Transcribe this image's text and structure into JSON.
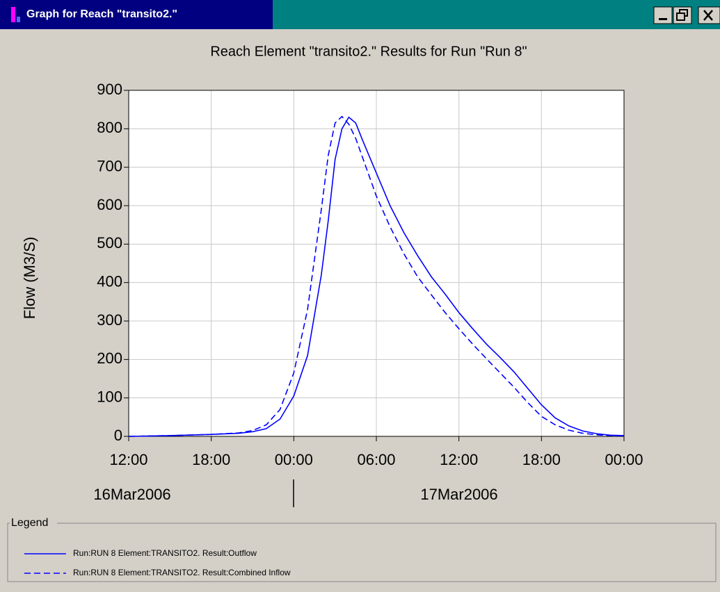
{
  "window": {
    "title": "Graph for Reach \"transito2.\""
  },
  "chart_data": {
    "type": "line",
    "title": "Reach Element \"transito2.\" Results for Run \"Run 8\"",
    "y_label": "Flow (M3/S)",
    "x": [
      0,
      3,
      6,
      8,
      9,
      10,
      11,
      12,
      13,
      14,
      14.5,
      15,
      15.5,
      16,
      16.5,
      17,
      18,
      19,
      20,
      21,
      22,
      23,
      24,
      25,
      26,
      27,
      28,
      29,
      30,
      31,
      32,
      33,
      34,
      35,
      36
    ],
    "series": [
      {
        "name": "Run:RUN 8 Element:TRANSITO2. Result:Outflow",
        "color": "#0000ff",
        "style": "solid",
        "values": [
          0,
          2,
          5,
          8,
          12,
          20,
          45,
          105,
          210,
          420,
          560,
          720,
          800,
          830,
          815,
          770,
          685,
          600,
          530,
          470,
          415,
          370,
          322,
          280,
          240,
          205,
          168,
          125,
          82,
          48,
          27,
          14,
          7,
          3,
          2
        ]
      },
      {
        "name": "Run:RUN 8 Element:TRANSITO2. Result:Combined Inflow",
        "color": "#0000ff",
        "style": "dashed",
        "values": [
          0,
          2,
          5,
          9,
          15,
          30,
          70,
          165,
          330,
          590,
          730,
          815,
          832,
          812,
          775,
          725,
          625,
          545,
          475,
          415,
          368,
          322,
          280,
          240,
          202,
          165,
          128,
          88,
          52,
          30,
          16,
          8,
          4,
          2,
          1
        ]
      }
    ],
    "xlim": [
      0,
      36
    ],
    "xticks": [
      {
        "value": 0,
        "label": "12:00"
      },
      {
        "value": 6,
        "label": "18:00"
      },
      {
        "value": 12,
        "label": "00:00"
      },
      {
        "value": 18,
        "label": "06:00"
      },
      {
        "value": 24,
        "label": "12:00"
      },
      {
        "value": 30,
        "label": "18:00"
      },
      {
        "value": 36,
        "label": "00:00"
      }
    ],
    "date_labels": [
      "16Mar2006",
      "17Mar2006"
    ],
    "ylim": [
      0,
      900
    ],
    "yticks": [
      0,
      100,
      200,
      300,
      400,
      500,
      600,
      700,
      800,
      900
    ],
    "grid": true,
    "legend_title": "Legend"
  }
}
